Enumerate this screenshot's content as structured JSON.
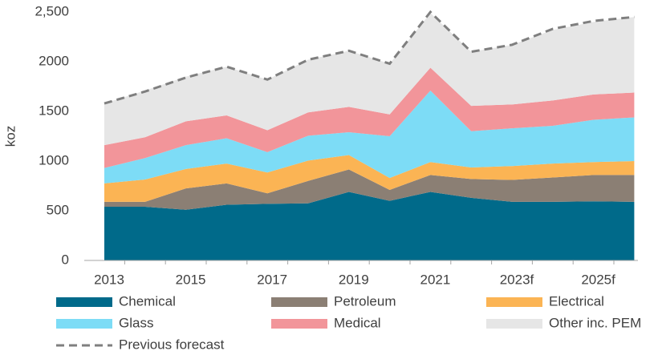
{
  "chart_data": {
    "type": "stacked_area",
    "y_label": "koz",
    "categories": [
      "2013",
      null,
      "2015",
      null,
      "2017",
      null,
      "2019",
      null,
      "2021",
      null,
      "2023f",
      null,
      "2025f",
      null
    ],
    "ylim": [
      0,
      2500
    ],
    "yticks": [
      0,
      500,
      1000,
      1500,
      2000,
      {
        "value": 2500,
        "label": "2,500"
      }
    ],
    "series": [
      {
        "name": "Chemical",
        "color": "#006a8a",
        "values": [
          540,
          540,
          510,
          560,
          570,
          575,
          690,
          600,
          690,
          630,
          590,
          590,
          595,
          590
        ]
      },
      {
        "name": "Petroleum",
        "color": "#8b7f74",
        "values": [
          50,
          50,
          215,
          215,
          105,
          225,
          225,
          110,
          170,
          190,
          220,
          245,
          265,
          270
        ]
      },
      {
        "name": "Electrical",
        "color": "#fbb454",
        "values": [
          185,
          225,
          195,
          200,
          210,
          205,
          145,
          120,
          130,
          115,
          140,
          140,
          130,
          140
        ]
      },
      {
        "name": "Glass",
        "color": "#7ddcf6",
        "values": [
          155,
          215,
          240,
          255,
          205,
          250,
          230,
          420,
          720,
          365,
          380,
          380,
          425,
          440
        ]
      },
      {
        "name": "Medical",
        "color": "#f2959a",
        "values": [
          230,
          210,
          240,
          230,
          220,
          235,
          255,
          220,
          230,
          255,
          240,
          255,
          255,
          250
        ]
      },
      {
        "name": "Other inc. PEM",
        "color": "#e6e6e6",
        "values": [
          420,
          470,
          450,
          490,
          510,
          530,
          565,
          510,
          550,
          545,
          600,
          710,
          730,
          760
        ]
      }
    ],
    "line_series": [
      {
        "name": "Previous forecast",
        "color": "#7f7f7f",
        "dashed": true,
        "values": [
          1580,
          1700,
          1840,
          1950,
          1820,
          2020,
          2110,
          1980,
          2500,
          2100,
          2170,
          2330,
          2410,
          2450
        ]
      }
    ]
  }
}
